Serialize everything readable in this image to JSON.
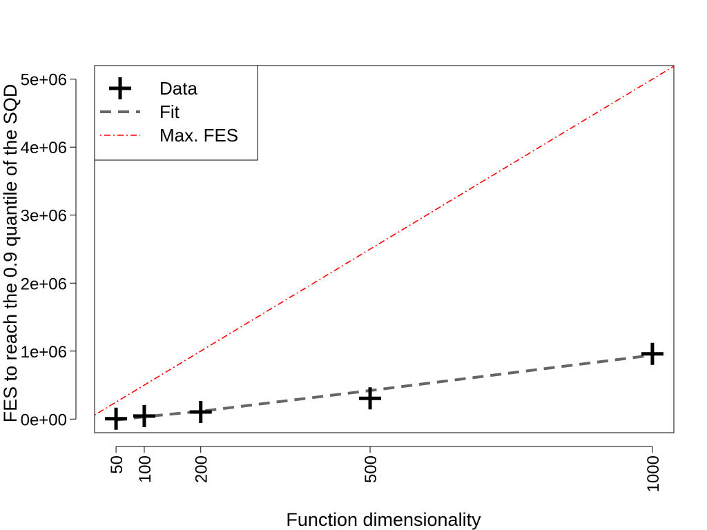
{
  "chart_data": {
    "type": "scatter",
    "xlabel": "Function dimensionality",
    "ylabel": "FES to reach the 0.9 quantile of the SQD",
    "x_ticks": [
      50,
      100,
      200,
      500,
      1000
    ],
    "y_ticks": [
      0,
      1000000,
      2000000,
      3000000,
      4000000,
      5000000
    ],
    "y_tick_labels": [
      "0e+00",
      "1e+06",
      "2e+06",
      "3e+06",
      "4e+06",
      "5e+06"
    ],
    "xlim": [
      12,
      1038
    ],
    "ylim": [
      -200000,
      5200000
    ],
    "legend_position": "top-left",
    "series": [
      {
        "name": "Data",
        "kind": "points",
        "marker": "plus",
        "color": "#000000",
        "x": [
          50,
          100,
          200,
          500,
          1000
        ],
        "y": [
          5000,
          45000,
          105000,
          305000,
          960000
        ]
      },
      {
        "name": "Fit",
        "kind": "line",
        "dash": "dashed",
        "color": "#666666",
        "x": [
          50,
          100,
          200,
          500,
          1000
        ],
        "y": [
          -15000,
          35000,
          115000,
          420000,
          940000
        ]
      },
      {
        "name": "Max. FES",
        "kind": "line",
        "dash": "dotdash",
        "color": "#ff0000",
        "x": [
          12,
          1038
        ],
        "y": [
          60000,
          5190000
        ]
      }
    ]
  }
}
